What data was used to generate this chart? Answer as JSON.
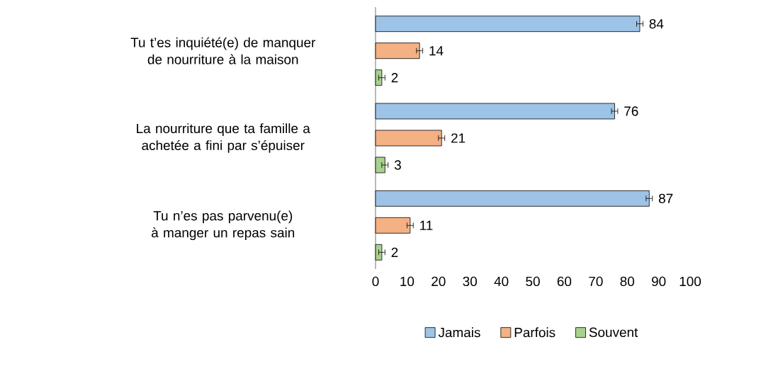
{
  "chart_data": {
    "type": "bar",
    "orientation": "horizontal",
    "categories": [
      "Tu t’es inquiété(e) de manquer de nourriture à la maison",
      "La nourriture que ta famille a achetée a fini par s’épuiser",
      "Tu n’es pas parvenu(e) à manger un repas sain"
    ],
    "series": [
      {
        "name": "Jamais",
        "color": "#9dc3e6",
        "values": [
          84,
          76,
          87
        ],
        "errors": [
          1,
          1,
          1
        ]
      },
      {
        "name": "Parfois",
        "color": "#f4b183",
        "values": [
          14,
          21,
          11
        ],
        "errors": [
          1,
          1,
          1
        ]
      },
      {
        "name": "Souvent",
        "color": "#a9d18e",
        "values": [
          2,
          3,
          2
        ],
        "errors": [
          1,
          1,
          1
        ]
      }
    ],
    "xlim": [
      0,
      100
    ],
    "xticks": [
      0,
      10,
      20,
      30,
      40,
      50,
      60,
      70,
      80,
      90,
      100
    ],
    "data_labels": true,
    "legend": "bottom",
    "grid": false
  }
}
